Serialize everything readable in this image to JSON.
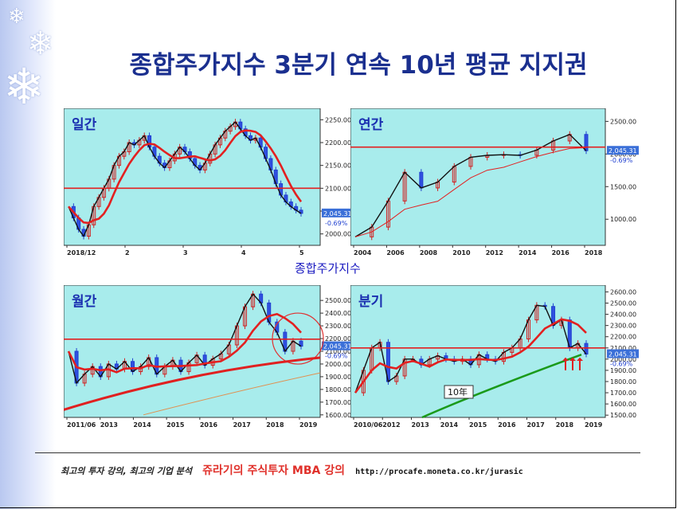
{
  "slide": {
    "title": "종합주가지수 3분기 연속 10년 평균 지지권",
    "center_label": "종합주가지수",
    "footer": {
      "tagline": "최고의 투자 강의, 최고의 기업 분석",
      "brand": "쥬라기의 주식투자 MBA 강의",
      "url": "http://procafe.moneta.co.kr/jurasic"
    },
    "colors": {
      "plot_bg": "#a8ecec",
      "title": "#1a2f8f",
      "price_tag": "#3a6fd8",
      "support_line": "#e32020"
    }
  },
  "chart_data": [
    {
      "type": "line",
      "panel_label": "일간",
      "x_ticks": [
        "2018/12",
        "2",
        "3",
        "4",
        "5"
      ],
      "y_ticks": [
        2000,
        2050,
        2100,
        2150,
        2200,
        2250
      ],
      "ylim": [
        1975,
        2275
      ],
      "price_tag": "2,045.31",
      "change_tag": "-0.69%",
      "series": [
        {
          "values": [
            2060,
            2035,
            2010,
            1995,
            2020,
            2060,
            2080,
            2100,
            2120,
            2150,
            2170,
            2180,
            2200,
            2195,
            2205,
            2215,
            2190,
            2170,
            2155,
            2145,
            2160,
            2175,
            2190,
            2180,
            2165,
            2150,
            2140,
            2155,
            2175,
            2195,
            2210,
            2225,
            2235,
            2245,
            2230,
            2215,
            2205,
            2210,
            2190,
            2165,
            2140,
            2110,
            2085,
            2070,
            2060,
            2052,
            2045
          ]
        }
      ]
    },
    {
      "type": "line",
      "panel_label": "연간",
      "x_ticks": [
        "2004",
        "2006",
        "2008",
        "2010",
        "2012",
        "2014",
        "2016",
        "2018"
      ],
      "y_ticks": [
        1000,
        1500,
        2000,
        2500
      ],
      "ylim": [
        600,
        2700
      ],
      "price_tag": "2,045.31",
      "change_tag": "-0.69%",
      "series": [
        {
          "values": [
            730,
            880,
            1280,
            1720,
            1480,
            1570,
            1810,
            1950,
            1980,
            1990,
            1980,
            2060,
            2200,
            2300,
            2050
          ]
        }
      ]
    },
    {
      "type": "line",
      "panel_label": "월간",
      "x_ticks": [
        "2011/06",
        "2013",
        "2014",
        "2015",
        "2016",
        "2017",
        "2018",
        "2019"
      ],
      "y_ticks": [
        1600,
        1700,
        1800,
        1900,
        2000,
        2100,
        2200,
        2300,
        2400,
        2500
      ],
      "ylim": [
        1580,
        2620
      ],
      "price_tag": "2,045.31",
      "change_tag": "-0.69%",
      "series": [
        {
          "values": [
            2100,
            1850,
            1920,
            1980,
            1900,
            2000,
            1960,
            2020,
            1940,
            1980,
            2050,
            1920,
            1980,
            2030,
            1940,
            2010,
            2070,
            1990,
            2040,
            2080,
            2150,
            2300,
            2450,
            2550,
            2480,
            2330,
            2250,
            2100,
            2180,
            2140
          ]
        }
      ]
    },
    {
      "type": "line",
      "panel_label": "분기",
      "x_ticks": [
        "2010/06",
        "2012",
        "2013",
        "2014",
        "2015",
        "2016",
        "2017",
        "2018",
        "2019"
      ],
      "y_ticks": [
        1500,
        1600,
        1700,
        1800,
        1900,
        2000,
        2100,
        2200,
        2300,
        2400,
        2500,
        2600
      ],
      "ylim": [
        1480,
        2660
      ],
      "price_tag": "2,045.31",
      "change_tag": "-0.69%",
      "annotation": "10年",
      "series": [
        {
          "values": [
            1700,
            1900,
            2100,
            2150,
            1800,
            1850,
            2000,
            2000,
            1950,
            2000,
            2030,
            2000,
            1980,
            2000,
            1950,
            2040,
            2000,
            1980,
            2060,
            2100,
            2180,
            2350,
            2480,
            2470,
            2300,
            2350,
            2100,
            2140,
            2045
          ]
        }
      ]
    }
  ]
}
